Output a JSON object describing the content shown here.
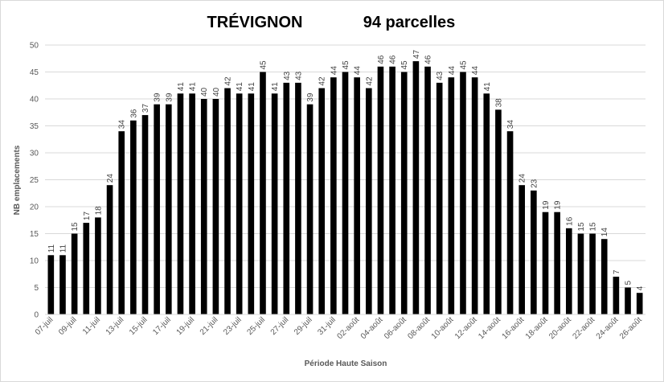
{
  "chart_data": {
    "type": "bar",
    "title": "TRÉVIGNON",
    "subtitle": "94 parcelles",
    "xlabel": "Période Haute Saison",
    "ylabel": "NB emplacements",
    "ylim": [
      0,
      50
    ],
    "yticks": [
      0,
      5,
      10,
      15,
      20,
      25,
      30,
      35,
      40,
      45,
      50
    ],
    "grid": true,
    "bar_color": "#000000",
    "categories": [
      "07-juil",
      "08-juil",
      "09-juil",
      "10-juil",
      "11-juil",
      "12-juil",
      "13-juil",
      "14-juil",
      "15-juil",
      "16-juil",
      "17-juil",
      "18-juil",
      "19-juil",
      "20-juil",
      "21-juil",
      "22-juil",
      "23-juil",
      "24-juil",
      "25-juil",
      "26-juil",
      "27-juil",
      "28-juil",
      "29-juil",
      "30-juil",
      "31-juil",
      "01-août",
      "02-août",
      "03-août",
      "04-août",
      "05-août",
      "06-août",
      "07-août",
      "08-août",
      "09-août",
      "10-août",
      "11-août",
      "12-août",
      "13-août",
      "14-août",
      "15-août",
      "16-août",
      "17-août",
      "18-août",
      "19-août",
      "20-août",
      "21-août",
      "22-août",
      "23-août",
      "24-août",
      "25-août",
      "26-août"
    ],
    "x_tick_labels": [
      "07-juil",
      "09-juil",
      "11-juil",
      "13-juil",
      "15-juil",
      "17-juil",
      "19-juil",
      "21-juil",
      "23-juil",
      "25-juil",
      "27-juil",
      "29-juil",
      "31-juil",
      "02-août",
      "04-août",
      "06-août",
      "08-août",
      "10-août",
      "12-août",
      "14-août",
      "16-août",
      "18-août",
      "20-août",
      "22-août",
      "24-août",
      "26-août"
    ],
    "values": [
      11,
      11,
      15,
      17,
      18,
      24,
      34,
      36,
      37,
      39,
      39,
      41,
      41,
      40,
      40,
      42,
      41,
      41,
      45,
      41,
      43,
      43,
      39,
      42,
      44,
      45,
      44,
      42,
      46,
      46,
      45,
      47,
      46,
      43,
      44,
      45,
      44,
      41,
      38,
      34,
      24,
      23,
      19,
      19,
      16,
      15,
      15,
      14,
      7,
      5,
      4
    ]
  }
}
